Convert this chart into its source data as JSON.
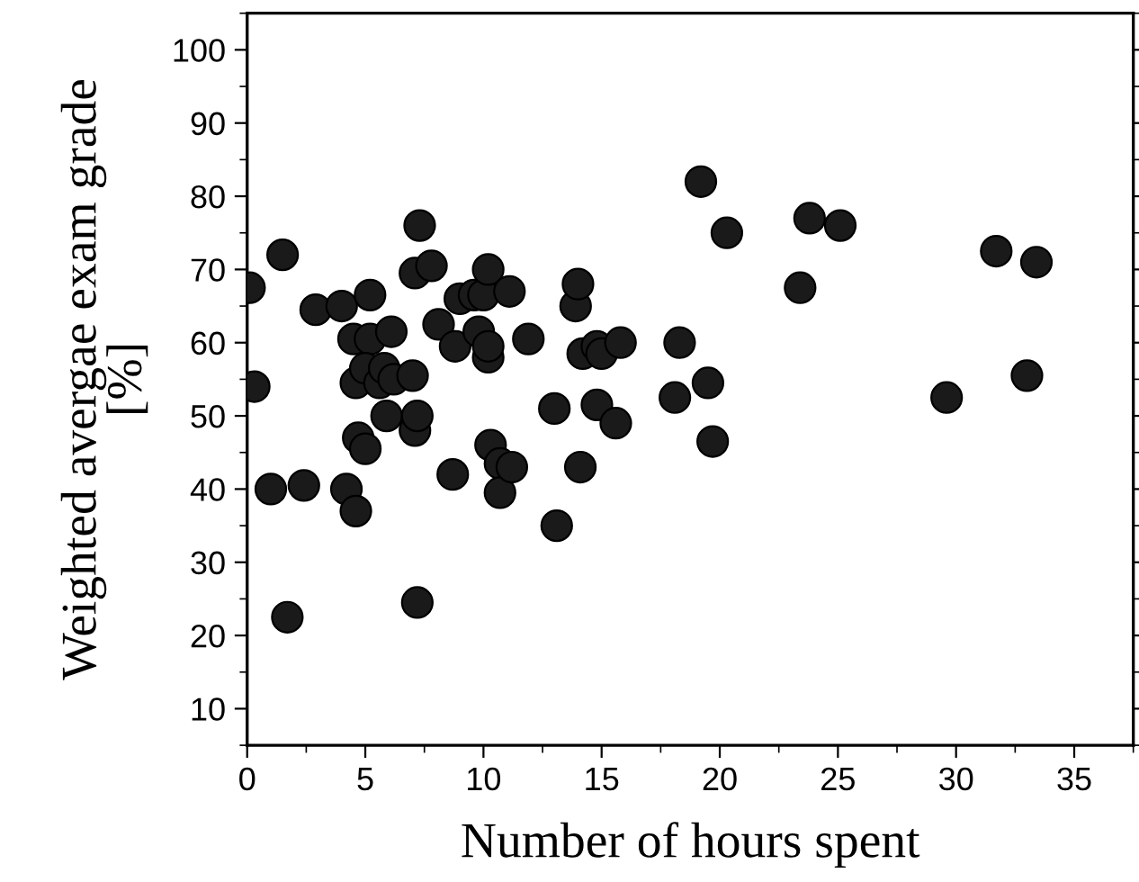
{
  "chart_data": {
    "type": "scatter",
    "xlabel": "Number of hours spent",
    "ylabel": "Weighted avergae exam grade\n[%]",
    "x": [
      0.1,
      0.3,
      1.5,
      1.0,
      1.7,
      2.4,
      2.9,
      4.0,
      4.2,
      4.6,
      4.7,
      5.0,
      4.6,
      4.5,
      5.2,
      5.2,
      5.0,
      5.6,
      5.8,
      5.9,
      6.1,
      6.2,
      7.0,
      7.1,
      7.2,
      7.1,
      7.3,
      7.8,
      7.2,
      8.1,
      8.7,
      8.8,
      9.0,
      9.6,
      9.8,
      10.0,
      10.2,
      10.2,
      10.2,
      10.3,
      10.7,
      10.7,
      11.2,
      11.1,
      11.9,
      13.1,
      13.0,
      13.9,
      14.0,
      14.1,
      14.2,
      14.8,
      14.8,
      15.0,
      15.6,
      15.8,
      18.1,
      18.3,
      19.2,
      19.5,
      19.7,
      20.3,
      23.4,
      23.8,
      25.1,
      29.6,
      31.7,
      33.0,
      33.4
    ],
    "values": [
      67.5,
      54,
      72,
      40,
      22.5,
      40.5,
      64.5,
      65,
      40,
      37,
      47,
      45.5,
      54.5,
      60.5,
      60.5,
      66.5,
      56.5,
      54.5,
      56.5,
      50,
      61.5,
      55,
      55.5,
      48,
      50,
      69.5,
      76,
      70.5,
      24.5,
      62.5,
      42,
      59.5,
      66,
      66.5,
      61.5,
      66.5,
      70,
      58,
      59.5,
      46,
      43.5,
      39.5,
      43,
      67,
      60.5,
      35,
      51,
      65,
      68,
      43,
      58.5,
      51.5,
      59.5,
      58.5,
      49,
      60,
      52.5,
      60,
      82,
      54.5,
      46.5,
      75,
      67.5,
      77,
      76,
      52.5,
      72.5,
      55.5,
      71
    ],
    "color": "#1a1a1a",
    "marker": "circle",
    "xlim": [
      0,
      37.5
    ],
    "ylim": [
      5,
      105
    ],
    "xticks": [
      0,
      5,
      10,
      15,
      20,
      25,
      30,
      35
    ],
    "yticks": [
      10,
      20,
      30,
      40,
      50,
      60,
      70,
      80,
      90,
      100
    ],
    "grid": false
  }
}
